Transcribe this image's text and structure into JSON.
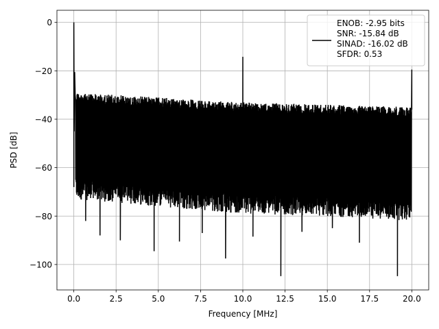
{
  "chart_data": {
    "type": "line",
    "title": "",
    "xlabel": "Frequency [MHz]",
    "ylabel": "PSD [dB]",
    "xlim": [
      -1.0,
      21.0
    ],
    "ylim": [
      -110.5,
      5.0
    ],
    "grid": true,
    "legend_position": "top-right",
    "x_ticks": [
      0.0,
      2.5,
      5.0,
      7.5,
      10.0,
      12.5,
      15.0,
      17.5,
      20.0
    ],
    "x_tick_labels": [
      "0.0",
      "2.5",
      "5.0",
      "7.5",
      "10.0",
      "12.5",
      "15.0",
      "17.5",
      "20.0"
    ],
    "y_ticks": [
      0,
      -20,
      -40,
      -60,
      -80,
      -100
    ],
    "y_tick_labels": [
      "0",
      "−20",
      "−40",
      "−60",
      "−80",
      "−100"
    ],
    "series": [
      {
        "color": "#000000",
        "noise_floor_top": [
          [
            0.1,
            -29
          ],
          [
            5,
            -31
          ],
          [
            10,
            -33
          ],
          [
            15,
            -34
          ],
          [
            20,
            -35
          ]
        ],
        "noise_floor_bottom": [
          [
            0.1,
            -69
          ],
          [
            5,
            -72
          ],
          [
            10,
            -75
          ],
          [
            15,
            -76
          ],
          [
            20,
            -78
          ]
        ],
        "spikes": [
          {
            "x": 0.0,
            "y": 0.0
          },
          {
            "x": 0.05,
            "y": -20.5
          },
          {
            "x": 10.0,
            "y": -14.2
          },
          {
            "x": 20.0,
            "y": -19.5
          },
          {
            "x": 12.25,
            "y": -104.8
          },
          {
            "x": 19.15,
            "y": -104.8
          },
          {
            "x": 8.98,
            "y": -97.5
          },
          {
            "x": 4.75,
            "y": -94.5
          },
          {
            "x": 2.75,
            "y": -90.0
          },
          {
            "x": 6.25,
            "y": -90.5
          },
          {
            "x": 16.9,
            "y": -91.0
          },
          {
            "x": 1.55,
            "y": -88.0
          },
          {
            "x": 10.6,
            "y": -88.5
          },
          {
            "x": 7.6,
            "y": -87.0
          },
          {
            "x": 13.5,
            "y": -86.5
          },
          {
            "x": 15.3,
            "y": -85.0
          },
          {
            "x": 0.7,
            "y": -82.0
          }
        ]
      }
    ],
    "legend_lines": [
      "ENOB: -2.95 bits",
      "SNR: -15.84 dB",
      "SINAD: -16.02 dB",
      "SFDR: 0.53"
    ]
  }
}
